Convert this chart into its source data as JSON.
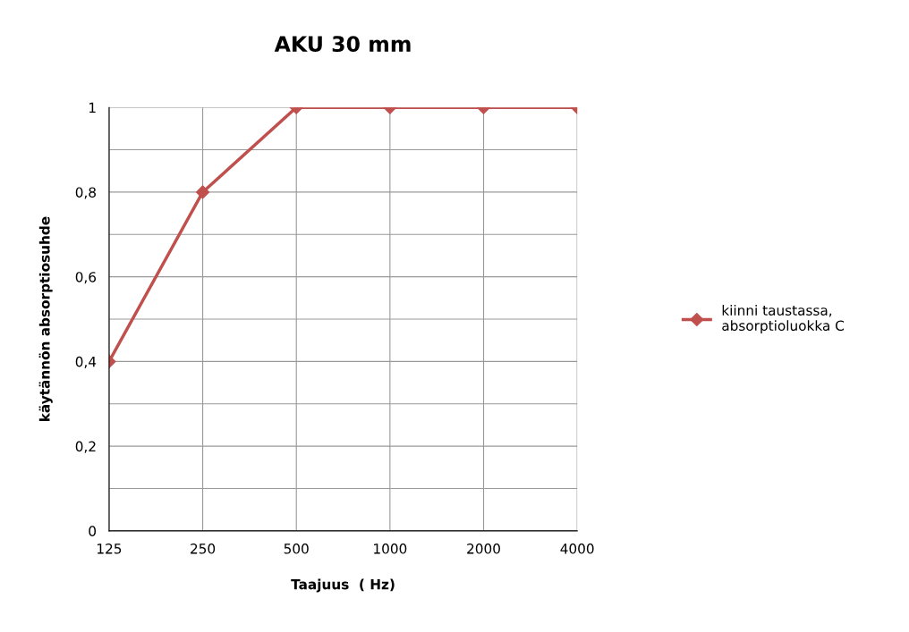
{
  "chart_data": {
    "type": "line",
    "title": "AKU 30 mm",
    "xlabel": "Taajuus  ( Hz)",
    "ylabel": "käytännön absorptiosuhde",
    "categories": [
      "125",
      "250",
      "500",
      "1000",
      "2000",
      "4000"
    ],
    "series": [
      {
        "name": "kiinni taustassa,\nabsorptioluokka C",
        "color": "#c0504d",
        "values": [
          0.4,
          0.8,
          1,
          1,
          1,
          1
        ]
      }
    ],
    "ylim": [
      0,
      1
    ],
    "yticks": [
      {
        "value": 0,
        "label": "0"
      },
      {
        "value": 0.1,
        "label": null
      },
      {
        "value": 0.2,
        "label": "0,2"
      },
      {
        "value": 0.3,
        "label": null
      },
      {
        "value": 0.4,
        "label": "0,4"
      },
      {
        "value": 0.5,
        "label": null
      },
      {
        "value": 0.6,
        "label": "0,6"
      },
      {
        "value": 0.7,
        "label": null
      },
      {
        "value": 0.8,
        "label": "0,8"
      },
      {
        "value": 0.9,
        "label": null
      },
      {
        "value": 1,
        "label": "1"
      }
    ],
    "grid": true,
    "legend": "right",
    "marker": "diamond",
    "line_style": "solid"
  }
}
